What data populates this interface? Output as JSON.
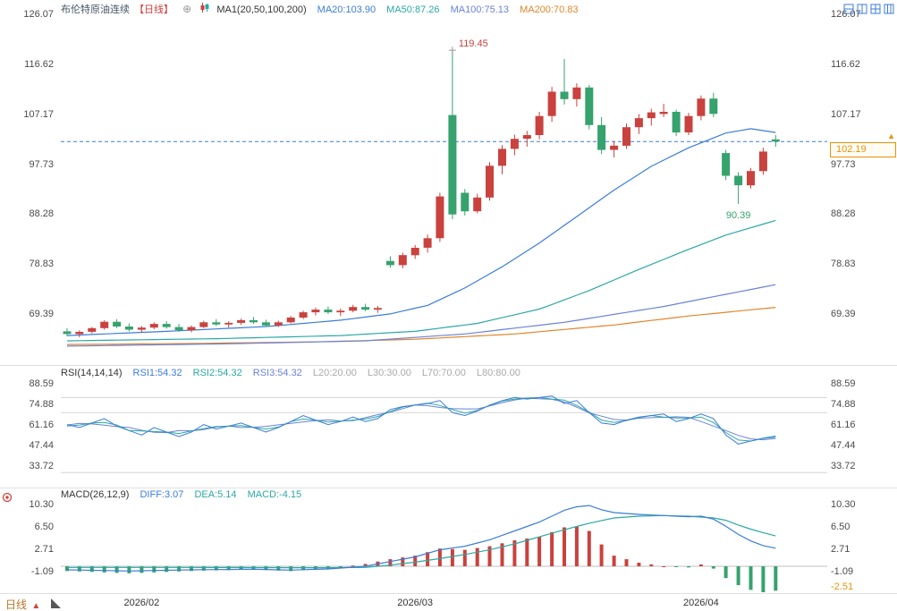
{
  "colors": {
    "up": "#c9423e",
    "down": "#36a26d",
    "ma20": "#3b7dd8",
    "ma50": "#2ba8a4",
    "ma100": "#6b82d8",
    "ma200": "#e0862c",
    "rsi1": "#3b7dd8",
    "rsi2": "#2ba8a4",
    "rsi3": "#6b82d8",
    "diff": "#3b7dd8",
    "dea": "#2ba8a4",
    "hist_pos": "#c9423e",
    "hist_neg": "#36a26d",
    "price_line": "#3b7dd8",
    "price_tag": "#e8920a",
    "level_line": "#d5d5d5",
    "separator": "#e0e0e0",
    "zero_line": "#c0c0c0",
    "axis_text": "#4a4a4a",
    "toolbar_icon": "#3b7dd8",
    "annotation_high": "#c9423e",
    "annotation_low": "#36a26d"
  },
  "header": {
    "title": "布伦特原油连续",
    "period_tag": "【日线】",
    "add_icon": "⊕",
    "ma_group_label": "MA1(20,50,100,200)",
    "ma_items": [
      {
        "label": "MA20:103.90",
        "color": "#3b7dd8"
      },
      {
        "label": "MA50:87.26",
        "color": "#2ba8a4"
      },
      {
        "label": "MA100:75.13",
        "color": "#6b82d8"
      },
      {
        "label": "MA200:70.83",
        "color": "#e0862c"
      }
    ]
  },
  "rsi_header": {
    "label": "RSI(14,14,14)",
    "items": [
      {
        "label": "RSI1:54.32",
        "color": "#3b7dd8"
      },
      {
        "label": "RSI2:54.32",
        "color": "#2ba8a4"
      },
      {
        "label": "RSI3:54.32",
        "color": "#6b82d8"
      }
    ],
    "levels": [
      {
        "label": "L20:20.00"
      },
      {
        "label": "L30:30.00"
      },
      {
        "label": "L70:70.00"
      },
      {
        "label": "L80:80.00"
      }
    ],
    "level_color": "#aaaaaa"
  },
  "macd_header": {
    "label": "MACD(26,12,9)",
    "items": [
      {
        "label": "DIFF:3.07",
        "color": "#3b7dd8"
      },
      {
        "label": "DEA:5.14",
        "color": "#2ba8a4"
      },
      {
        "label": "MACD:-4.15",
        "color": "#2ba8a4"
      }
    ]
  },
  "toolbar": {
    "icons": [
      {
        "name": "layout-rows-icon"
      },
      {
        "name": "layout-columns-icon"
      },
      {
        "name": "layout-grid-icon"
      },
      {
        "name": "layout-multi-panel-icon"
      }
    ]
  },
  "price_tag": {
    "value": "102.19",
    "arrow": "▲"
  },
  "footer": {
    "interval_label": "日线",
    "arrow": "▲"
  },
  "chart_data": {
    "type": "candlestick",
    "title": "布伦特原油连续 日线",
    "x_labels": [
      {
        "index": 6,
        "label": "2026/02"
      },
      {
        "index": 28,
        "label": "2026/03"
      },
      {
        "index": 51,
        "label": "2026/04"
      }
    ],
    "main_panel": {
      "y_ticks": [
        "126.07",
        "116.62",
        "107.17",
        "97.73",
        "88.28",
        "78.83",
        "69.39"
      ],
      "last_price": 102.19,
      "candles": [
        [
          66.3,
          66.9,
          65.4,
          65.8
        ],
        [
          65.8,
          66.5,
          65.2,
          66.2
        ],
        [
          66.2,
          67.1,
          65.9,
          66.9
        ],
        [
          66.9,
          68.4,
          66.6,
          68.1
        ],
        [
          68.1,
          68.6,
          66.9,
          67.2
        ],
        [
          67.2,
          67.8,
          66.3,
          66.6
        ],
        [
          66.6,
          67.3,
          66.0,
          67.0
        ],
        [
          67.0,
          68.0,
          66.7,
          67.7
        ],
        [
          67.7,
          68.2,
          66.8,
          67.1
        ],
        [
          67.1,
          67.7,
          66.2,
          66.5
        ],
        [
          66.5,
          67.4,
          66.1,
          67.1
        ],
        [
          67.1,
          68.3,
          66.9,
          68.0
        ],
        [
          68.0,
          68.6,
          67.3,
          67.6
        ],
        [
          67.6,
          68.2,
          67.0,
          67.9
        ],
        [
          67.9,
          68.7,
          67.5,
          68.4
        ],
        [
          68.4,
          69.0,
          67.7,
          68.0
        ],
        [
          68.0,
          68.5,
          67.1,
          67.4
        ],
        [
          67.4,
          68.3,
          67.1,
          68.0
        ],
        [
          68.0,
          69.2,
          67.8,
          68.9
        ],
        [
          68.9,
          70.2,
          68.6,
          69.9
        ],
        [
          69.9,
          70.8,
          69.3,
          70.4
        ],
        [
          70.4,
          71.0,
          69.6,
          69.9
        ],
        [
          69.9,
          70.6,
          69.2,
          70.2
        ],
        [
          70.2,
          71.3,
          69.9,
          70.9
        ],
        [
          70.9,
          71.5,
          70.1,
          70.4
        ],
        [
          70.4,
          71.1,
          69.8,
          70.7
        ],
        [
          79.6,
          80.5,
          78.3,
          78.8
        ],
        [
          78.8,
          81.2,
          78.2,
          80.7
        ],
        [
          80.7,
          82.6,
          80.0,
          82.1
        ],
        [
          82.1,
          84.6,
          81.2,
          83.9
        ],
        [
          83.9,
          92.5,
          83.2,
          91.8
        ],
        [
          107.2,
          119.45,
          87.5,
          88.4
        ],
        [
          92.5,
          93.2,
          88.2,
          89.0
        ],
        [
          89.0,
          92.3,
          88.6,
          91.6
        ],
        [
          91.6,
          98.3,
          91.0,
          97.6
        ],
        [
          97.6,
          101.5,
          96.0,
          100.8
        ],
        [
          100.8,
          103.5,
          99.6,
          102.7
        ],
        [
          102.7,
          104.2,
          101.2,
          103.4
        ],
        [
          103.4,
          107.8,
          102.6,
          107.0
        ],
        [
          107.0,
          112.5,
          105.9,
          111.6
        ],
        [
          111.6,
          117.8,
          109.2,
          110.2
        ],
        [
          110.2,
          113.2,
          108.8,
          112.4
        ],
        [
          112.4,
          112.9,
          104.5,
          105.3
        ],
        [
          105.3,
          106.8,
          99.8,
          100.6
        ],
        [
          100.6,
          102.3,
          99.2,
          101.4
        ],
        [
          101.4,
          105.6,
          100.8,
          104.9
        ],
        [
          104.9,
          107.4,
          103.6,
          106.6
        ],
        [
          106.6,
          108.4,
          105.2,
          107.7
        ],
        [
          107.4,
          109.3,
          106.8,
          107.8
        ],
        [
          107.8,
          108.2,
          103.2,
          103.9
        ],
        [
          103.9,
          107.6,
          103.4,
          107.0
        ],
        [
          107.0,
          110.9,
          106.2,
          110.3
        ],
        [
          110.3,
          111.4,
          106.8,
          107.4
        ],
        [
          100.0,
          100.6,
          94.9,
          95.7
        ],
        [
          95.7,
          96.4,
          90.39,
          93.9
        ],
        [
          93.9,
          97.2,
          93.3,
          96.6
        ],
        [
          96.6,
          101.0,
          95.9,
          100.3
        ],
        [
          102.6,
          103.4,
          101.2,
          102.19
        ]
      ],
      "ma_lines": {
        "ma20": {
          "points": [
            [
              0,
              65.5
            ],
            [
              8,
              66.3
            ],
            [
              16,
              67.2
            ],
            [
              22,
              68.4
            ],
            [
              26,
              69.6
            ],
            [
              29,
              71.2
            ],
            [
              32,
              74.5
            ],
            [
              35,
              78.5
            ],
            [
              38,
              83.0
            ],
            [
              41,
              88.0
            ],
            [
              44,
              93.0
            ],
            [
              47,
              97.5
            ],
            [
              50,
              101.0
            ],
            [
              53,
              103.8
            ],
            [
              55,
              104.6
            ],
            [
              57,
              103.9
            ]
          ]
        },
        "ma50": {
          "points": [
            [
              0,
              64.5
            ],
            [
              12,
              64.9
            ],
            [
              22,
              65.5
            ],
            [
              28,
              66.3
            ],
            [
              33,
              67.8
            ],
            [
              38,
              70.5
            ],
            [
              42,
              74.0
            ],
            [
              46,
              78.0
            ],
            [
              50,
              81.8
            ],
            [
              53,
              84.5
            ],
            [
              57,
              87.26
            ]
          ]
        },
        "ma100": {
          "points": [
            [
              0,
              63.5
            ],
            [
              12,
              63.9
            ],
            [
              24,
              64.5
            ],
            [
              32,
              65.8
            ],
            [
              40,
              68.0
            ],
            [
              48,
              71.0
            ],
            [
              53,
              73.3
            ],
            [
              57,
              75.13
            ]
          ]
        },
        "ma200": {
          "points": [
            [
              0,
              63.8
            ],
            [
              10,
              64.0
            ],
            [
              20,
              64.3
            ],
            [
              28,
              64.8
            ],
            [
              36,
              65.8
            ],
            [
              44,
              67.5
            ],
            [
              50,
              69.2
            ],
            [
              57,
              70.83
            ]
          ]
        }
      },
      "annotations": [
        {
          "text": "119.45",
          "candle": 31,
          "price": 119.45,
          "place": "above",
          "marker": true
        },
        {
          "text": "90.39",
          "candle": 54,
          "price": 90.39,
          "place": "below",
          "marker": false
        }
      ]
    },
    "rsi_panel": {
      "y_ticks": [
        "88.59",
        "74.88",
        "61.16",
        "47.44",
        "33.72"
      ],
      "levels": [
        80,
        70,
        30
      ],
      "rsi": [
        62,
        60,
        63,
        66,
        61,
        58,
        55,
        60,
        57,
        54,
        57,
        62,
        59,
        61,
        63,
        60,
        57,
        60,
        64,
        68,
        65,
        62,
        64,
        67,
        64,
        66,
        72,
        74,
        75,
        76,
        78,
        70,
        68,
        71,
        75,
        78,
        80,
        79,
        80,
        81,
        76,
        78,
        70,
        63,
        62,
        65,
        67,
        68,
        69,
        64,
        66,
        69,
        66,
        55,
        49,
        51,
        53,
        54.32
      ]
    },
    "macd_panel": {
      "y_ticks": [
        "10.30",
        "6.50",
        "2.71",
        "-1.09"
      ],
      "extra_right_tick": {
        "label": "-2.51"
      },
      "diff_points": [
        [
          0,
          -0.6
        ],
        [
          5,
          -0.8
        ],
        [
          10,
          -0.6
        ],
        [
          15,
          -0.5
        ],
        [
          18,
          -0.65
        ],
        [
          21,
          -0.45
        ],
        [
          24,
          0
        ],
        [
          26,
          0.8
        ],
        [
          28,
          1.6
        ],
        [
          30,
          2.8
        ],
        [
          32,
          3.4
        ],
        [
          34,
          4.5
        ],
        [
          36,
          6.0
        ],
        [
          38,
          7.5
        ],
        [
          40,
          9.5
        ],
        [
          41,
          10.1
        ],
        [
          42,
          10.3
        ],
        [
          43,
          9.6
        ],
        [
          44,
          9.1
        ],
        [
          46,
          8.8
        ],
        [
          48,
          8.6
        ],
        [
          50,
          8.4
        ],
        [
          51,
          8.5
        ],
        [
          52,
          8.0
        ],
        [
          53,
          6.8
        ],
        [
          54,
          5.4
        ],
        [
          55,
          4.3
        ],
        [
          56,
          3.5
        ],
        [
          57,
          3.07
        ]
      ],
      "dea_points": [
        [
          0,
          -0.2
        ],
        [
          10,
          -0.2
        ],
        [
          20,
          -0.25
        ],
        [
          24,
          -0.2
        ],
        [
          26,
          0.2
        ],
        [
          28,
          0.7
        ],
        [
          30,
          1.3
        ],
        [
          32,
          2.0
        ],
        [
          34,
          2.8
        ],
        [
          36,
          3.8
        ],
        [
          38,
          5.0
        ],
        [
          40,
          6.2
        ],
        [
          42,
          7.3
        ],
        [
          44,
          8.2
        ],
        [
          46,
          8.5
        ],
        [
          48,
          8.6
        ],
        [
          50,
          8.5
        ],
        [
          52,
          8.2
        ],
        [
          53,
          7.8
        ],
        [
          54,
          7.0
        ],
        [
          55,
          6.3
        ],
        [
          56,
          5.7
        ],
        [
          57,
          5.14
        ]
      ]
    }
  }
}
